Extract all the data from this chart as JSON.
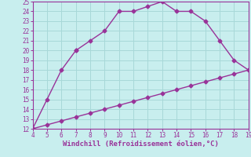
{
  "xlabel": "Windchill (Refroidissement éolien,°C)",
  "xlim": [
    4,
    19
  ],
  "ylim": [
    12,
    25
  ],
  "xticks": [
    4,
    5,
    6,
    7,
    8,
    9,
    10,
    11,
    12,
    13,
    14,
    15,
    16,
    17,
    18,
    19
  ],
  "yticks": [
    12,
    13,
    14,
    15,
    16,
    17,
    18,
    19,
    20,
    21,
    22,
    23,
    24,
    25
  ],
  "bg_color": "#c8eeee",
  "grid_color": "#a8d8d8",
  "line_color": "#993399",
  "curve1_x": [
    4,
    5,
    6,
    7,
    7,
    8,
    9,
    10,
    11,
    12,
    13,
    14,
    15,
    16,
    17,
    18,
    19
  ],
  "curve1_y": [
    12,
    15,
    18,
    20,
    20,
    21,
    22,
    24,
    24,
    24.5,
    25,
    24,
    24,
    23,
    21,
    19,
    18
  ],
  "curve2_x": [
    4,
    5,
    6,
    7,
    8,
    9,
    10,
    11,
    12,
    13,
    14,
    15,
    16,
    17,
    18,
    19
  ],
  "curve2_y": [
    12,
    12.4,
    12.8,
    13.2,
    13.6,
    14.0,
    14.4,
    14.8,
    15.2,
    15.6,
    16.0,
    16.4,
    16.8,
    17.2,
    17.6,
    18.0
  ],
  "markersize": 2.5,
  "linewidth": 1.0,
  "tick_fontsize": 5.5,
  "label_fontsize": 6.5
}
